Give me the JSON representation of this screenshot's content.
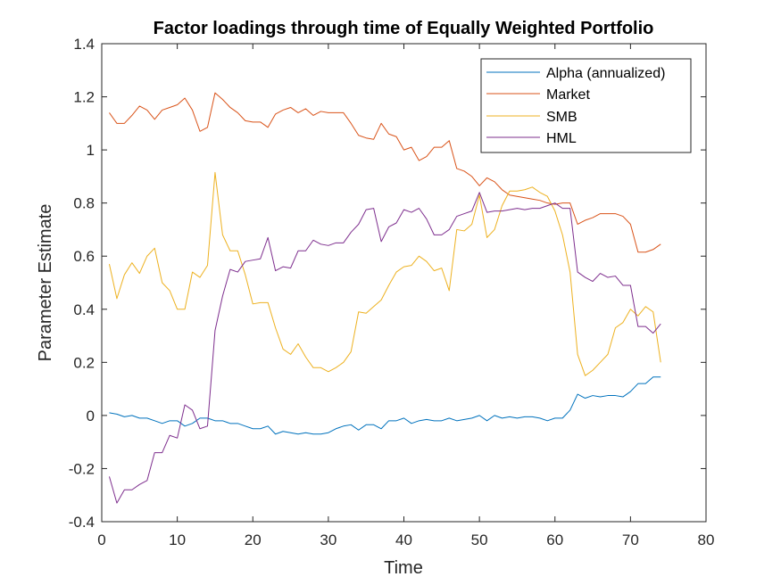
{
  "chart_data": {
    "type": "line",
    "title": "Factor loadings through time of Equally Weighted Portfolio",
    "xlabel": "Time",
    "ylabel": "Parameter Estimate",
    "xlim": [
      0,
      80
    ],
    "ylim": [
      -0.4,
      1.4
    ],
    "xticks": [
      0,
      10,
      20,
      30,
      40,
      50,
      60,
      70,
      80
    ],
    "yticks": [
      -0.4,
      -0.2,
      0,
      0.2,
      0.4,
      0.6,
      0.8,
      1,
      1.2,
      1.4
    ],
    "xtick_labels": [
      "0",
      "10",
      "20",
      "30",
      "40",
      "50",
      "60",
      "70",
      "80"
    ],
    "ytick_labels": [
      "-0.4",
      "-0.2",
      "0",
      "0.2",
      "0.4",
      "0.6",
      "0.8",
      "1",
      "1.2",
      "1.4"
    ],
    "grid": false,
    "legend_position": "top-right",
    "x": [
      1,
      2,
      3,
      4,
      5,
      6,
      7,
      8,
      9,
      10,
      11,
      12,
      13,
      14,
      15,
      16,
      17,
      18,
      19,
      20,
      21,
      22,
      23,
      24,
      25,
      26,
      27,
      28,
      29,
      30,
      31,
      32,
      33,
      34,
      35,
      36,
      37,
      38,
      39,
      40,
      41,
      42,
      43,
      44,
      45,
      46,
      47,
      48,
      49,
      50,
      51,
      52,
      53,
      54,
      55,
      56,
      57,
      58,
      59,
      60,
      61,
      62,
      63,
      64,
      65,
      66,
      67,
      68,
      69,
      70,
      71,
      72,
      73,
      74
    ],
    "series": [
      {
        "name": "Alpha (annualized)",
        "color": "#0072BD",
        "values": [
          0.01,
          0.005,
          -0.005,
          0.0,
          -0.01,
          -0.01,
          -0.02,
          -0.03,
          -0.02,
          -0.02,
          -0.04,
          -0.03,
          -0.01,
          -0.01,
          -0.02,
          -0.02,
          -0.03,
          -0.03,
          -0.04,
          -0.05,
          -0.05,
          -0.04,
          -0.07,
          -0.06,
          -0.065,
          -0.07,
          -0.065,
          -0.07,
          -0.07,
          -0.065,
          -0.05,
          -0.04,
          -0.035,
          -0.055,
          -0.035,
          -0.035,
          -0.05,
          -0.02,
          -0.02,
          -0.01,
          -0.03,
          -0.02,
          -0.015,
          -0.02,
          -0.02,
          -0.01,
          -0.02,
          -0.015,
          -0.01,
          0.0,
          -0.02,
          0.0,
          -0.01,
          -0.005,
          -0.01,
          -0.005,
          -0.005,
          -0.01,
          -0.02,
          -0.01,
          -0.01,
          0.02,
          0.08,
          0.065,
          0.075,
          0.07,
          0.075,
          0.075,
          0.07,
          0.09,
          0.12,
          0.12,
          0.145,
          0.145
        ]
      },
      {
        "name": "Market",
        "color": "#D95319",
        "values": [
          1.14,
          1.1,
          1.1,
          1.13,
          1.165,
          1.15,
          1.115,
          1.15,
          1.16,
          1.17,
          1.195,
          1.15,
          1.07,
          1.085,
          1.215,
          1.19,
          1.16,
          1.14,
          1.11,
          1.105,
          1.105,
          1.085,
          1.135,
          1.15,
          1.16,
          1.14,
          1.155,
          1.13,
          1.145,
          1.14,
          1.14,
          1.14,
          1.1,
          1.055,
          1.045,
          1.04,
          1.1,
          1.06,
          1.05,
          1.0,
          1.01,
          0.96,
          0.975,
          1.01,
          1.01,
          1.035,
          0.93,
          0.92,
          0.9,
          0.865,
          0.895,
          0.88,
          0.85,
          0.83,
          0.825,
          0.82,
          0.815,
          0.81,
          0.8,
          0.795,
          0.8,
          0.8,
          0.72,
          0.735,
          0.745,
          0.76,
          0.76,
          0.76,
          0.75,
          0.72,
          0.615,
          0.615,
          0.625,
          0.645
        ]
      },
      {
        "name": "SMB",
        "color": "#EDB120",
        "values": [
          0.57,
          0.44,
          0.53,
          0.575,
          0.535,
          0.6,
          0.63,
          0.5,
          0.47,
          0.4,
          0.4,
          0.54,
          0.52,
          0.565,
          0.915,
          0.68,
          0.62,
          0.62,
          0.53,
          0.42,
          0.425,
          0.425,
          0.33,
          0.25,
          0.23,
          0.27,
          0.22,
          0.18,
          0.18,
          0.165,
          0.18,
          0.2,
          0.24,
          0.39,
          0.385,
          0.41,
          0.435,
          0.49,
          0.54,
          0.56,
          0.565,
          0.6,
          0.58,
          0.545,
          0.555,
          0.47,
          0.7,
          0.695,
          0.72,
          0.83,
          0.67,
          0.7,
          0.79,
          0.845,
          0.845,
          0.85,
          0.86,
          0.84,
          0.825,
          0.77,
          0.68,
          0.54,
          0.23,
          0.15,
          0.17,
          0.2,
          0.23,
          0.33,
          0.35,
          0.4,
          0.375,
          0.41,
          0.39,
          0.2
        ]
      },
      {
        "name": "HML",
        "color": "#7E2F8E",
        "values": [
          -0.23,
          -0.33,
          -0.28,
          -0.28,
          -0.26,
          -0.245,
          -0.14,
          -0.14,
          -0.075,
          -0.085,
          0.04,
          0.02,
          -0.05,
          -0.04,
          0.32,
          0.45,
          0.55,
          0.54,
          0.58,
          0.585,
          0.59,
          0.67,
          0.545,
          0.56,
          0.555,
          0.62,
          0.62,
          0.66,
          0.645,
          0.64,
          0.65,
          0.65,
          0.69,
          0.72,
          0.775,
          0.78,
          0.655,
          0.71,
          0.725,
          0.775,
          0.765,
          0.78,
          0.74,
          0.68,
          0.68,
          0.7,
          0.75,
          0.76,
          0.77,
          0.84,
          0.765,
          0.77,
          0.77,
          0.775,
          0.78,
          0.775,
          0.78,
          0.78,
          0.79,
          0.8,
          0.78,
          0.78,
          0.54,
          0.52,
          0.505,
          0.535,
          0.52,
          0.525,
          0.49,
          0.49,
          0.335,
          0.335,
          0.31,
          0.345
        ]
      }
    ]
  }
}
